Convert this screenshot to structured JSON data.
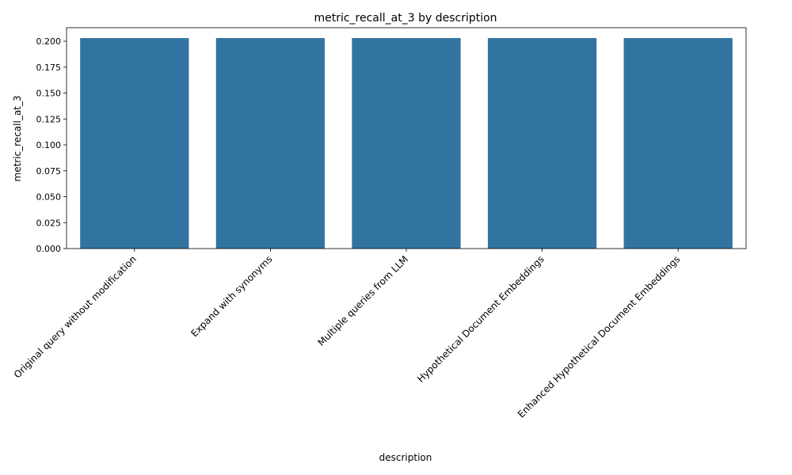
{
  "chart_data": {
    "type": "bar",
    "title": "metric_recall_at_3 by description",
    "xlabel": "description",
    "ylabel": "metric_recall_at_3",
    "categories": [
      "Original query without modification",
      "Expand with synonyms",
      "Multiple queries from LLM",
      "Hypothetical Document Embeddings",
      "Enhanced Hypothetical Document Embeddings"
    ],
    "values": [
      0.203,
      0.203,
      0.203,
      0.203,
      0.203
    ],
    "ylim": [
      0,
      0.213
    ],
    "yticks": [
      "0.000",
      "0.025",
      "0.050",
      "0.075",
      "0.100",
      "0.125",
      "0.150",
      "0.175",
      "0.200"
    ],
    "grid": false,
    "colors": {
      "bar": "#3274a1"
    }
  }
}
